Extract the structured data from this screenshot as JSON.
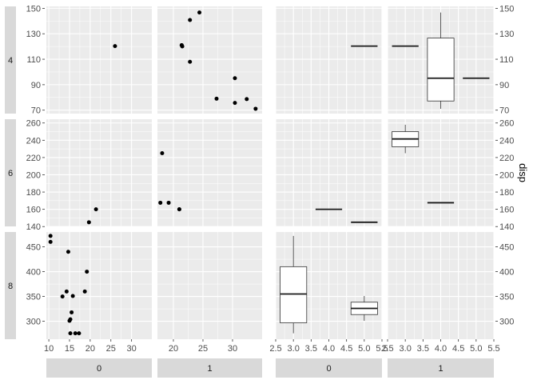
{
  "chart_data": {
    "type": "scatter",
    "title": "",
    "right_axis_title": "disp",
    "grid": true,
    "columns": [
      {
        "type": "scatter",
        "strip": "0",
        "xticks": [
          10,
          15,
          20,
          25,
          30
        ],
        "xlim": [
          9.4,
          34.9
        ]
      },
      {
        "type": "scatter",
        "strip": "1",
        "xticks": [
          20,
          25,
          30
        ],
        "xlim": [
          17.3,
          35.0
        ]
      },
      {
        "type": "box",
        "strip": "0",
        "xticks": [
          2.5,
          3.0,
          3.5,
          4.0,
          4.5,
          5.0,
          5.5
        ],
        "xlim": [
          2.5,
          5.5
        ]
      },
      {
        "type": "box",
        "strip": "1",
        "xticks": [
          2.5,
          3.0,
          3.5,
          4.0,
          4.5,
          5.0,
          5.5
        ],
        "xlim": [
          2.5,
          5.5
        ]
      }
    ],
    "rows": [
      {
        "strip": "4",
        "yticks": [
          70,
          90,
          110,
          130,
          150
        ],
        "ylim": [
          67.3,
          151.5
        ]
      },
      {
        "strip": "6",
        "yticks": [
          140,
          160,
          180,
          200,
          220,
          240,
          260
        ],
        "ylim": [
          140.2,
          264.4
        ]
      },
      {
        "strip": "8",
        "yticks": [
          300,
          350,
          400,
          450
        ],
        "ylim": [
          263.9,
          479.9
        ]
      }
    ],
    "scatter": [
      {
        "row": 0,
        "col": 0,
        "x": [
          26.0
        ],
        "y": [
          120.3
        ]
      },
      {
        "row": 0,
        "col": 1,
        "x": [
          22.8,
          24.4,
          22.8,
          32.4,
          30.4,
          33.9,
          21.5,
          27.3,
          30.4,
          21.4,
          21.4
        ],
        "y": [
          108,
          146.7,
          140.8,
          78.7,
          75.7,
          71.1,
          120.1,
          79,
          95.1,
          121,
          121
        ]
      },
      {
        "row": 1,
        "col": 0,
        "x": [
          21.4,
          19.7
        ],
        "y": [
          160,
          145
        ]
      },
      {
        "row": 1,
        "col": 1,
        "x": [
          21.0,
          21.0,
          18.1,
          19.2,
          17.8
        ],
        "y": [
          160,
          160,
          225,
          167.6,
          167.6
        ]
      },
      {
        "row": 2,
        "col": 0,
        "x": [
          18.7,
          14.3,
          16.4,
          17.3,
          15.2,
          10.4,
          10.4,
          14.7,
          15.5,
          15.2,
          13.3,
          19.2,
          15.8,
          15.0
        ],
        "y": [
          360,
          360,
          275.8,
          275.8,
          275.8,
          472,
          460,
          440,
          318,
          304,
          350,
          400,
          351,
          301
        ]
      },
      {
        "row": 2,
        "col": 1,
        "x": [],
        "y": []
      }
    ],
    "boxes": [
      {
        "row": 0,
        "col": 2,
        "x": 5.0,
        "min": 120.3,
        "q1": 120.3,
        "median": 120.3,
        "q3": 120.3,
        "max": 120.3
      },
      {
        "row": 0,
        "col": 3,
        "x": 3.0,
        "min": 120.3,
        "q1": 120.3,
        "median": 120.3,
        "q3": 120.3,
        "max": 120.3
      },
      {
        "row": 0,
        "col": 3,
        "x": 4.0,
        "min": 71.1,
        "q1": 77.2,
        "median": 95.1,
        "q3": 126.6,
        "max": 146.7
      },
      {
        "row": 0,
        "col": 3,
        "x": 5.0,
        "min": 95.1,
        "q1": 95.1,
        "median": 95.1,
        "q3": 95.1,
        "max": 95.1
      },
      {
        "row": 1,
        "col": 2,
        "x": 4.0,
        "min": 160,
        "q1": 160,
        "median": 160,
        "q3": 160,
        "max": 160
      },
      {
        "row": 1,
        "col": 2,
        "x": 5.0,
        "min": 145,
        "q1": 145,
        "median": 145,
        "q3": 145,
        "max": 145
      },
      {
        "row": 1,
        "col": 3,
        "x": 3.0,
        "min": 225,
        "q1": 232.5,
        "median": 241.5,
        "q3": 250,
        "max": 258
      },
      {
        "row": 1,
        "col": 3,
        "x": 4.0,
        "min": 167.6,
        "q1": 167.6,
        "median": 167.6,
        "q3": 167.6,
        "max": 167.6
      },
      {
        "row": 2,
        "col": 2,
        "x": 3.0,
        "min": 275.8,
        "q1": 296.9,
        "median": 355,
        "q3": 410,
        "max": 472
      },
      {
        "row": 2,
        "col": 2,
        "x": 5.0,
        "min": 301,
        "q1": 313.5,
        "median": 326,
        "q3": 338.5,
        "max": 351
      }
    ]
  }
}
